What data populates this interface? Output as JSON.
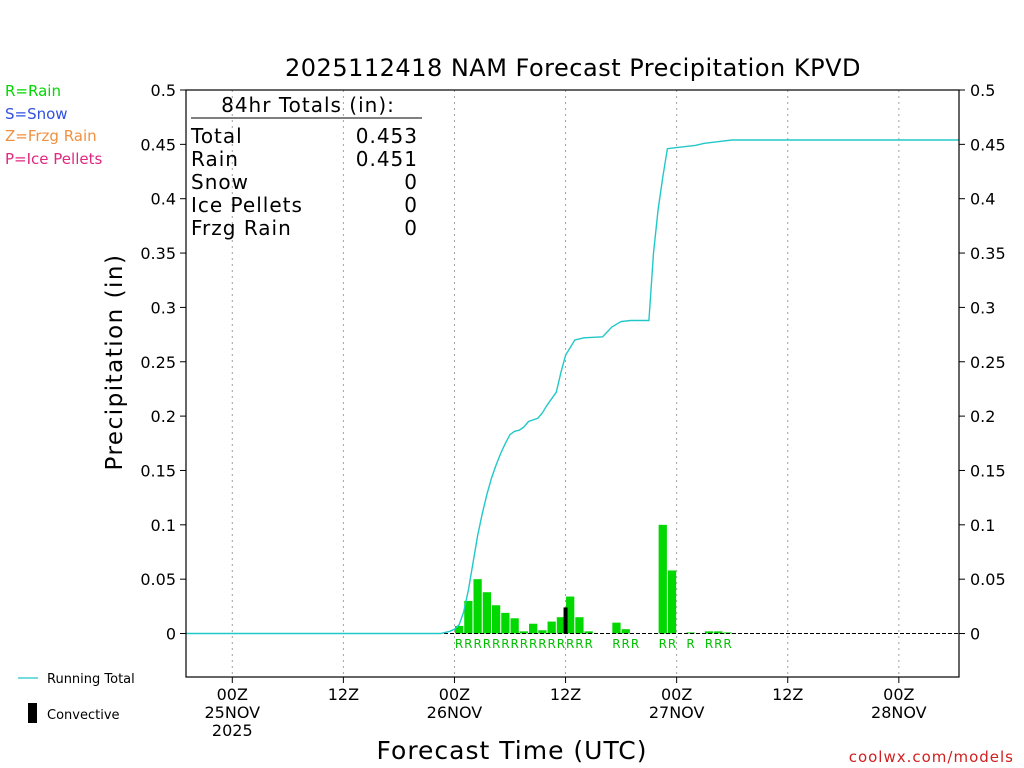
{
  "chart_data": {
    "type": "bar",
    "title": "2025112418 NAM Forecast Precipitation KPVD",
    "xlabel": "Forecast Time (UTC)",
    "ylabel": "Precipitation (in)",
    "ylim": [
      -0.04,
      0.5
    ],
    "xlim_hours": [
      -5,
      78.5
    ],
    "y_ticks": [
      0,
      0.05,
      0.1,
      0.15,
      0.2,
      0.25,
      0.3,
      0.35,
      0.4,
      0.45,
      0.5
    ],
    "y_tick_labels": [
      "0",
      "0.05",
      "0.1",
      "0.15",
      "0.2",
      "0.25",
      "0.3",
      "0.35",
      "0.4",
      "0.45",
      "0.5"
    ],
    "x_ticks": [
      {
        "hour": 0,
        "lines": [
          "00Z",
          "25NOV",
          "2025"
        ]
      },
      {
        "hour": 12,
        "lines": [
          "12Z"
        ]
      },
      {
        "hour": 24,
        "lines": [
          "00Z",
          "26NOV"
        ]
      },
      {
        "hour": 36,
        "lines": [
          "12Z"
        ]
      },
      {
        "hour": 48,
        "lines": [
          "00Z",
          "27NOV"
        ]
      },
      {
        "hour": 60,
        "lines": [
          "12Z"
        ]
      },
      {
        "hour": 72,
        "lines": [
          "00Z",
          "28NOV"
        ]
      }
    ],
    "bar_width_hours": 1,
    "series": [
      {
        "name": "Rain",
        "color": "#00d800",
        "bars": [
          {
            "hour": 24.5,
            "value": 0.007
          },
          {
            "hour": 25.5,
            "value": 0.03
          },
          {
            "hour": 26.5,
            "value": 0.05
          },
          {
            "hour": 27.5,
            "value": 0.038
          },
          {
            "hour": 28.5,
            "value": 0.026
          },
          {
            "hour": 29.5,
            "value": 0.019
          },
          {
            "hour": 30.5,
            "value": 0.014
          },
          {
            "hour": 31.5,
            "value": 0.002
          },
          {
            "hour": 32.5,
            "value": 0.009
          },
          {
            "hour": 33.5,
            "value": 0.003
          },
          {
            "hour": 34.5,
            "value": 0.011
          },
          {
            "hour": 35.5,
            "value": 0.015
          },
          {
            "hour": 36.5,
            "value": 0.034
          },
          {
            "hour": 37.5,
            "value": 0.015
          },
          {
            "hour": 38.5,
            "value": 0.002
          },
          {
            "hour": 41.5,
            "value": 0.01
          },
          {
            "hour": 42.5,
            "value": 0.004
          },
          {
            "hour": 46.5,
            "value": 0.1
          },
          {
            "hour": 47.5,
            "value": 0.058
          },
          {
            "hour": 49.5,
            "value": 0.001
          },
          {
            "hour": 51.5,
            "value": 0.002
          },
          {
            "hour": 52.5,
            "value": 0.002
          },
          {
            "hour": 53.5,
            "value": 0.001
          }
        ]
      },
      {
        "name": "Convective",
        "color": "#000000",
        "bars": [
          {
            "hour": 36.0,
            "value": 0.024
          }
        ]
      },
      {
        "name": "Running Total",
        "color": "#22c8c8",
        "type": "line",
        "points": [
          [
            -5,
            0
          ],
          [
            22.5,
            0
          ],
          [
            23.5,
            0.002
          ],
          [
            24,
            0.004
          ],
          [
            24.5,
            0.008
          ],
          [
            25,
            0.02
          ],
          [
            25.5,
            0.04
          ],
          [
            26,
            0.065
          ],
          [
            26.5,
            0.09
          ],
          [
            27,
            0.11
          ],
          [
            27.5,
            0.128
          ],
          [
            28,
            0.143
          ],
          [
            28.5,
            0.155
          ],
          [
            29,
            0.166
          ],
          [
            29.5,
            0.175
          ],
          [
            30,
            0.183
          ],
          [
            30.5,
            0.186
          ],
          [
            31,
            0.187
          ],
          [
            31.5,
            0.19
          ],
          [
            32,
            0.195
          ],
          [
            33,
            0.198
          ],
          [
            33.5,
            0.203
          ],
          [
            34,
            0.21
          ],
          [
            35,
            0.222
          ],
          [
            35.5,
            0.24
          ],
          [
            36,
            0.256
          ],
          [
            37,
            0.27
          ],
          [
            38,
            0.272
          ],
          [
            40,
            0.273
          ],
          [
            41,
            0.282
          ],
          [
            42,
            0.287
          ],
          [
            43,
            0.288
          ],
          [
            45,
            0.288
          ],
          [
            45.5,
            0.35
          ],
          [
            46,
            0.39
          ],
          [
            46.5,
            0.42
          ],
          [
            47,
            0.446
          ],
          [
            48,
            0.447
          ],
          [
            50,
            0.449
          ],
          [
            51,
            0.451
          ],
          [
            52,
            0.452
          ],
          [
            53,
            0.453
          ],
          [
            54,
            0.454
          ],
          [
            78.5,
            0.454
          ]
        ]
      }
    ],
    "ptype_markers": [
      {
        "hour": 24.5,
        "label": "R"
      },
      {
        "hour": 25.5,
        "label": "R"
      },
      {
        "hour": 26.5,
        "label": "R"
      },
      {
        "hour": 27.5,
        "label": "R"
      },
      {
        "hour": 28.5,
        "label": "R"
      },
      {
        "hour": 29.5,
        "label": "R"
      },
      {
        "hour": 30.5,
        "label": "R"
      },
      {
        "hour": 31.5,
        "label": "R"
      },
      {
        "hour": 32.5,
        "label": "R"
      },
      {
        "hour": 33.5,
        "label": "R"
      },
      {
        "hour": 34.5,
        "label": "R"
      },
      {
        "hour": 35.5,
        "label": "R"
      },
      {
        "hour": 36.5,
        "label": "R"
      },
      {
        "hour": 37.5,
        "label": "R"
      },
      {
        "hour": 38.5,
        "label": "R"
      },
      {
        "hour": 41.5,
        "label": "R"
      },
      {
        "hour": 42.5,
        "label": "R"
      },
      {
        "hour": 43.5,
        "label": "R"
      },
      {
        "hour": 46.5,
        "label": "R"
      },
      {
        "hour": 47.5,
        "label": "R"
      },
      {
        "hour": 49.5,
        "label": "R"
      },
      {
        "hour": 51.5,
        "label": "R"
      },
      {
        "hour": 52.5,
        "label": "R"
      },
      {
        "hour": 53.5,
        "label": "R"
      }
    ],
    "totals_box": {
      "heading": "84hr Totals (in):",
      "rows": [
        {
          "label": "Total",
          "value": "0.453"
        },
        {
          "label": "Rain",
          "value": "0.451"
        },
        {
          "label": "Snow",
          "value": "0"
        },
        {
          "label": "Ice Pellets",
          "value": "0"
        },
        {
          "label": "Frzg Rain",
          "value": "0"
        }
      ]
    },
    "ptype_legend": [
      {
        "text": "R=Rain",
        "color": "#00d800"
      },
      {
        "text": "S=Snow",
        "color": "#3050e0"
      },
      {
        "text": "Z=Frzg Rain",
        "color": "#f09040"
      },
      {
        "text": "P=Ice Pellets",
        "color": "#e02880"
      }
    ],
    "bottom_legend": [
      {
        "text": "Running Total",
        "kind": "line",
        "color": "#22c8c8"
      },
      {
        "text": "Convective",
        "kind": "bar",
        "color": "#000000"
      }
    ],
    "credit": "coolwx.com/models"
  }
}
